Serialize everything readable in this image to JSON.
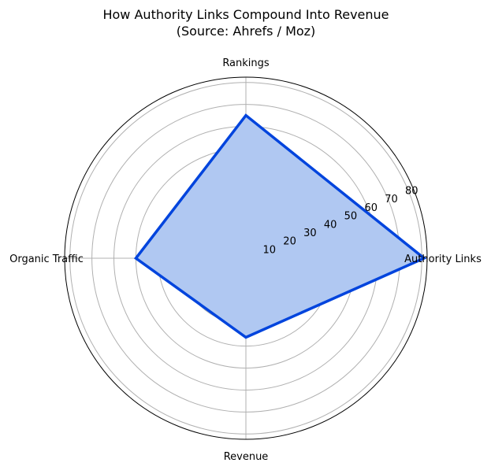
{
  "chart_data": {
    "type": "radar",
    "title": "How Authority Links Compound Into Revenue\n(Source: Ahrefs / Moz)",
    "title_lines": [
      "How Authority Links Compound Into Revenue",
      "(Source: Ahrefs / Moz)"
    ],
    "categories": [
      "Authority Links",
      "Rankings",
      "Organic Traffic",
      "Revenue"
    ],
    "values": [
      81,
      65,
      50,
      36
    ],
    "radial_ticks": [
      "10",
      "20",
      "30",
      "40",
      "50",
      "60",
      "70",
      "80"
    ],
    "rlim": [
      0,
      82.4
    ],
    "grid": true,
    "colors": {
      "line": "#0044dd",
      "fill": "#b0c8f2",
      "grid": "#b0b0b0"
    }
  }
}
